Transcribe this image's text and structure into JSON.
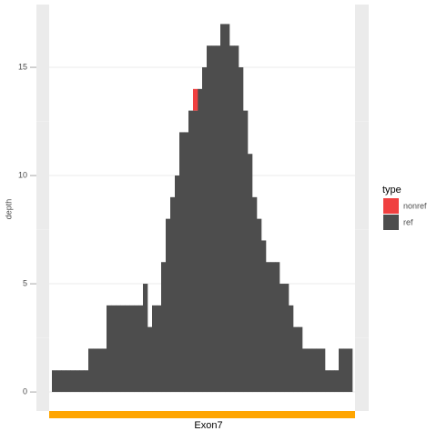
{
  "chart_data": {
    "type": "bar",
    "stacked": true,
    "y_label": "depth",
    "categories": [
      null,
      null,
      null,
      null,
      null,
      null,
      null,
      null,
      null,
      null,
      null,
      null,
      null,
      null,
      null,
      null,
      null,
      null,
      null,
      null,
      null,
      null,
      null,
      null,
      null,
      null,
      null,
      null,
      null,
      null,
      null,
      null,
      null,
      null,
      null,
      null,
      null,
      null,
      null,
      null,
      null,
      null,
      null,
      null,
      null,
      null,
      null,
      null,
      null,
      null,
      null,
      null,
      null,
      null,
      null,
      null,
      null,
      null,
      null,
      null,
      null,
      null,
      null,
      null,
      null,
      null
    ],
    "series": [
      {
        "name": "ref",
        "color": "#4d4d4d",
        "values": [
          1,
          1,
          1,
          1,
          1,
          1,
          1,
          1,
          2,
          2,
          2,
          2,
          4,
          4,
          4,
          4,
          4,
          4,
          4,
          4,
          5,
          3,
          4,
          4,
          6,
          8,
          9,
          10,
          12,
          12,
          13,
          13,
          14,
          15,
          16,
          16,
          16,
          17,
          17,
          16,
          16,
          15,
          13,
          11,
          9,
          8,
          7,
          6,
          6,
          6,
          5,
          5,
          4,
          3,
          3,
          2,
          2,
          2,
          2,
          2,
          1,
          1,
          1,
          2,
          2,
          2
        ]
      },
      {
        "name": "nonref",
        "color": "#f04040",
        "values": [
          0,
          0,
          0,
          0,
          0,
          0,
          0,
          0,
          0,
          0,
          0,
          0,
          0,
          0,
          0,
          0,
          0,
          0,
          0,
          0,
          0,
          0,
          0,
          0,
          0,
          0,
          0,
          0,
          0,
          0,
          0,
          1,
          0,
          0,
          0,
          0,
          0,
          0,
          0,
          0,
          0,
          0,
          0,
          0,
          0,
          0,
          0,
          0,
          0,
          0,
          0,
          0,
          0,
          0,
          0,
          0,
          0,
          0,
          0,
          0,
          0,
          0,
          0,
          0,
          0,
          0
        ]
      }
    ],
    "legend_title": "type",
    "legend_order": [
      1,
      0
    ],
    "ylim": [
      -0.88,
      17.9
    ],
    "yticks": [
      0,
      5,
      10,
      15
    ],
    "grid": true,
    "region": {
      "label": "Exon7",
      "color": "#ffa500"
    }
  }
}
